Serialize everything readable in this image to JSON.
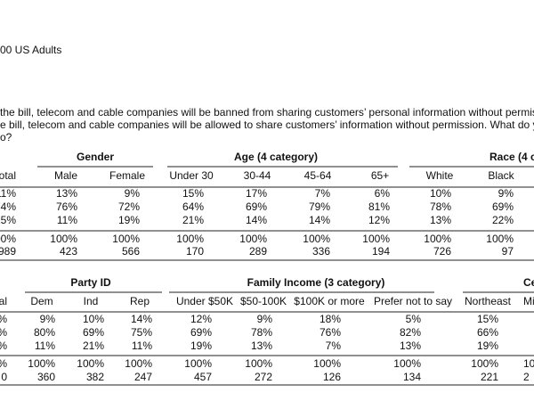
{
  "header": {
    "sample": "00 US Adults",
    "question_lines": [
      "the bill, telecom and cable companies will be banned from sharing customers’ personal information without permission",
      "e bill, telecom and cable companies will be allowed to share customers’ information without permission. What do you th",
      "o?"
    ]
  },
  "tables": [
    {
      "groups": [
        "Gender",
        "Age (4 category)",
        "Race (4 c"
      ],
      "columns": [
        "otal",
        "Male",
        "Female",
        "Under 30",
        "30-44",
        "45-64",
        "65+",
        "White",
        "Black"
      ],
      "rows": [
        [
          "11%",
          "13%",
          "9%",
          "15%",
          "17%",
          "7%",
          "6%",
          "10%",
          "9%"
        ],
        [
          "74%",
          "76%",
          "72%",
          "64%",
          "69%",
          "79%",
          "81%",
          "78%",
          "69%"
        ],
        [
          "15%",
          "11%",
          "19%",
          "21%",
          "14%",
          "14%",
          "12%",
          "13%",
          "22%"
        ],
        [
          "00%",
          "100%",
          "100%",
          "100%",
          "100%",
          "100%",
          "100%",
          "100%",
          "100%"
        ],
        [
          "989",
          "423",
          "566",
          "170",
          "289",
          "336",
          "194",
          "726",
          "97"
        ]
      ]
    },
    {
      "groups": [
        "Party ID",
        "Family Income (3 category)",
        "Ce"
      ],
      "columns": [
        "al",
        "Dem",
        "Ind",
        "Rep",
        "Under $50K",
        "$50-100K",
        "$100K or more",
        "Prefer not to say",
        "Northeast",
        "Mi"
      ],
      "rows": [
        [
          "%",
          "9%",
          "10%",
          "14%",
          "12%",
          "9%",
          "18%",
          "5%",
          "15%"
        ],
        [
          "%",
          "80%",
          "69%",
          "75%",
          "69%",
          "78%",
          "76%",
          "82%",
          "66%"
        ],
        [
          "%",
          "11%",
          "21%",
          "11%",
          "19%",
          "13%",
          "7%",
          "13%",
          "19%"
        ],
        [
          "%",
          "100%",
          "100%",
          "100%",
          "100%",
          "100%",
          "100%",
          "100%",
          "100%",
          "10"
        ],
        [
          "0",
          "360",
          "382",
          "247",
          "457",
          "272",
          "126",
          "134",
          "221",
          "2"
        ]
      ]
    }
  ]
}
